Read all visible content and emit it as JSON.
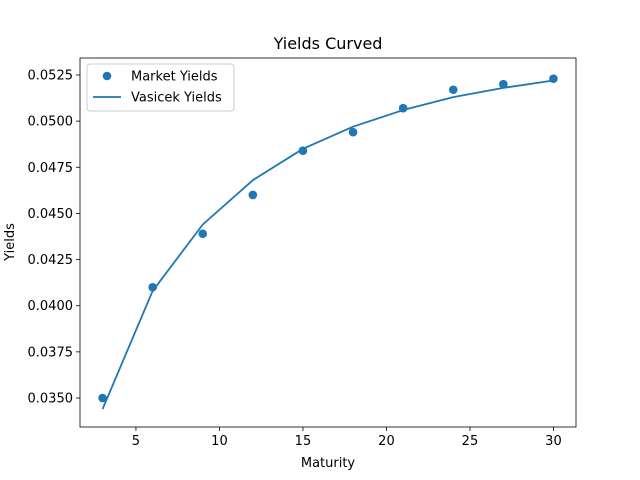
{
  "chart_data": {
    "type": "scatter",
    "title": "Yields Curved",
    "xlabel": "Maturity",
    "ylabel": "Yields",
    "xlim": [
      1.65,
      31.35
    ],
    "ylim": [
      0.03343,
      0.05342
    ],
    "xticks": [
      5,
      10,
      15,
      20,
      25,
      30
    ],
    "yticks": [
      0.035,
      0.0375,
      0.04,
      0.0425,
      0.045,
      0.0475,
      0.05,
      0.0525
    ],
    "ytick_labels": [
      "0.0350",
      "0.0375",
      "0.0400",
      "0.0425",
      "0.0450",
      "0.0475",
      "0.0500",
      "0.0525"
    ],
    "grid": false,
    "legend_position": "top-left",
    "series": [
      {
        "name": "Market Yields",
        "kind": "scatter",
        "color": "#1f77b4",
        "x": [
          3,
          6,
          9,
          12,
          15,
          18,
          21,
          24,
          27,
          30
        ],
        "y": [
          0.035,
          0.041,
          0.0439,
          0.046,
          0.0484,
          0.0494,
          0.0507,
          0.0517,
          0.052,
          0.0523
        ]
      },
      {
        "name": "Vasicek Yields",
        "kind": "line",
        "color": "#1f77b4",
        "x": [
          3,
          6,
          9,
          12,
          15,
          18,
          21,
          24,
          27,
          30
        ],
        "y": [
          0.0344,
          0.0408,
          0.0444,
          0.0468,
          0.0485,
          0.0497,
          0.0506,
          0.0513,
          0.0518,
          0.0522
        ]
      }
    ]
  }
}
